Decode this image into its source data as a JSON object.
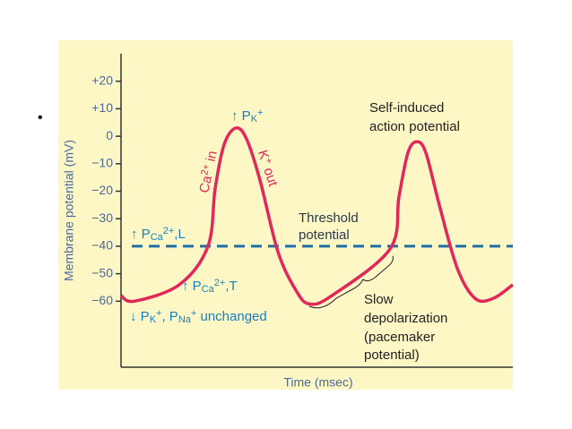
{
  "slide": {
    "bullet": "•"
  },
  "chart_data": {
    "type": "line",
    "ylabel": "Membrane potential (mV)",
    "xlabel": "Time (msec)",
    "ylim": [
      -84,
      30
    ],
    "xlim": [
      0,
      437
    ],
    "yticks": [
      {
        "value": 20,
        "label": "+20"
      },
      {
        "value": 10,
        "label": "+10"
      },
      0,
      {
        "value": -10,
        "label": "−10"
      },
      {
        "value": -20,
        "label": "−20"
      },
      {
        "value": -30,
        "label": "−30"
      },
      {
        "value": -40,
        "label": "−40"
      },
      {
        "value": -50,
        "label": "−50"
      },
      {
        "value": -60,
        "label": "−60"
      }
    ],
    "threshold": -40,
    "threshold_color": "#1f6ea8",
    "series": [
      {
        "color": "#e0285a",
        "x": [
          0,
          15,
          65,
          97,
          105,
          115,
          128,
          140,
          155,
          175,
          195,
          210,
          235,
          300,
          310,
          320,
          330,
          340,
          355,
          375,
          395,
          415,
          437
        ],
        "values": [
          -58,
          -60,
          -54,
          -40,
          -19,
          -3,
          3,
          -1,
          -16,
          -42,
          -56,
          -61,
          -58,
          -41,
          -22,
          -6,
          -2,
          -6,
          -25,
          -48,
          -59,
          -59,
          -54
        ]
      }
    ],
    "annotations": [
      {
        "parts": [
          {
            "text": "Ca"
          },
          {
            "text": "2+",
            "kind": "sup"
          },
          {
            "text": " in"
          }
        ]
      },
      {
        "parts": [
          {
            "text": "K"
          },
          {
            "text": "+",
            "kind": "sup"
          },
          {
            "text": " out"
          }
        ]
      },
      {
        "parts": [
          {
            "text": "↑ P"
          },
          {
            "text": "K",
            "kind": "sub"
          },
          {
            "text": "+",
            "kind": "sup"
          }
        ]
      },
      {
        "parts": [
          {
            "text": "Self-induced"
          }
        ]
      },
      {
        "parts": [
          {
            "text": "action potential"
          }
        ]
      },
      {
        "parts": [
          {
            "text": "Threshold"
          }
        ]
      },
      {
        "parts": [
          {
            "text": "potential"
          }
        ]
      },
      {
        "parts": [
          {
            "text": "↑ P"
          },
          {
            "text": "Ca",
            "kind": "sub"
          },
          {
            "text": "2+",
            "kind": "sup"
          },
          {
            "text": ",L"
          }
        ]
      },
      {
        "parts": [
          {
            "text": "↑ P"
          },
          {
            "text": "Ca",
            "kind": "sub"
          },
          {
            "text": "2+",
            "kind": "sup"
          },
          {
            "text": ",T"
          }
        ]
      },
      {
        "parts": [
          {
            "text": "↓ P"
          },
          {
            "text": "K",
            "kind": "sub"
          },
          {
            "text": "+",
            "kind": "sup"
          },
          {
            "text": ", P"
          },
          {
            "text": "Na",
            "kind": "sub"
          },
          {
            "text": "+",
            "kind": "sup"
          },
          {
            "text": " unchanged"
          }
        ]
      },
      {
        "parts": [
          {
            "text": "Slow"
          }
        ]
      },
      {
        "parts": [
          {
            "text": "depolarization"
          }
        ]
      },
      {
        "parts": [
          {
            "text": "(pacemaker"
          }
        ]
      },
      {
        "parts": [
          {
            "text": "potential)"
          }
        ]
      }
    ]
  }
}
